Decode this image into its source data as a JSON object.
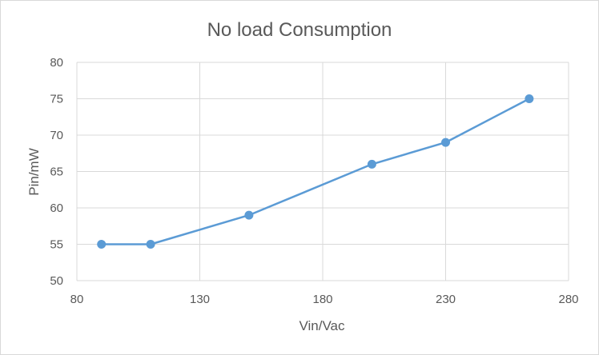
{
  "chart_data": {
    "type": "scatter",
    "title": "No load Consumption",
    "xlabel": "Vin/Vac",
    "ylabel": "Pin/mW",
    "x": [
      90,
      110,
      150,
      200,
      230,
      264
    ],
    "series": [
      {
        "name": "",
        "values": [
          55,
          55,
          59,
          66,
          69,
          75
        ]
      }
    ],
    "xlim": [
      80,
      280
    ],
    "ylim": [
      50,
      80
    ],
    "x_ticks": [
      80,
      130,
      180,
      230,
      280
    ],
    "y_ticks": [
      50,
      55,
      60,
      65,
      70,
      75,
      80
    ],
    "grid": true,
    "legend": "none",
    "line_color": "#5b9bd5",
    "grid_color": "#d9d9d9",
    "text_color": "#595959"
  }
}
